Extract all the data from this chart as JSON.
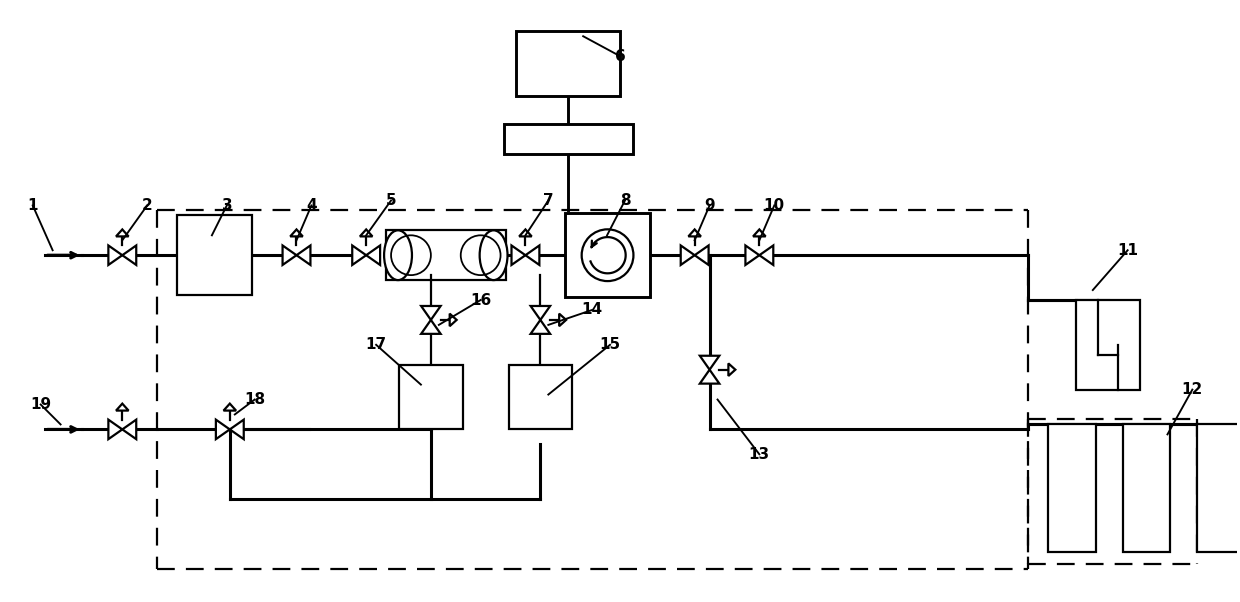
{
  "bg_color": "#ffffff",
  "lc": "#000000",
  "lw": 1.6,
  "tlw": 2.2,
  "fig_width": 12.4,
  "fig_height": 6.02
}
